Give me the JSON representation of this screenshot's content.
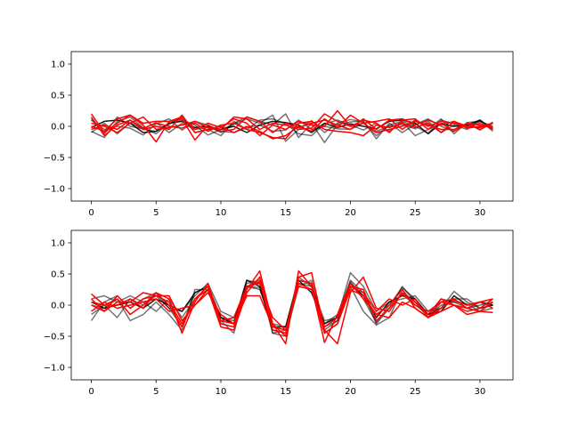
{
  "chart_data": [
    {
      "type": "line",
      "title": "",
      "xlabel": "",
      "ylabel": "",
      "xlim": [
        -1.55,
        32.55
      ],
      "ylim": [
        -1.2,
        1.2
      ],
      "xticks": [
        0,
        5,
        10,
        15,
        20,
        25,
        30
      ],
      "xtick_labels": [
        "0",
        "5",
        "10",
        "15",
        "20",
        "25",
        "30"
      ],
      "yticks": [
        -1.0,
        -0.5,
        0.0,
        0.5,
        1.0
      ],
      "ytick_labels": [
        "−1.0",
        "−0.5",
        "0.0",
        "0.5",
        "1.0"
      ],
      "grid": false,
      "x": [
        0,
        1,
        2,
        3,
        4,
        5,
        6,
        7,
        8,
        9,
        10,
        11,
        12,
        13,
        14,
        15,
        16,
        17,
        18,
        19,
        20,
        21,
        22,
        23,
        24,
        25,
        26,
        27,
        28,
        29,
        30,
        31
      ],
      "series": [
        {
          "color": "#000000",
          "opacity": 0.55,
          "values": [
            -0.08,
            -0.18,
            0.08,
            0.15,
            -0.02,
            -0.12,
            0.05,
            0.1,
            0.02,
            -0.14,
            -0.05,
            0.03,
            0.12,
            0.05,
            0.18,
            -0.24,
            -0.05,
            0.09,
            -0.1,
            0.05,
            0.11,
            0.07,
            -0.15,
            0.02,
            0.08,
            0.0,
            -0.11,
            0.1,
            0.04,
            0.0,
            0.08,
            -0.02
          ]
        },
        {
          "color": "#000000",
          "opacity": 0.55,
          "values": [
            0.1,
            -0.05,
            0.0,
            -0.03,
            -0.14,
            0.04,
            0.12,
            -0.06,
            0.08,
            0.02,
            -0.1,
            0.05,
            0.15,
            0.08,
            0.02,
            0.2,
            -0.18,
            0.05,
            -0.26,
            0.03,
            0.07,
            0.09,
            -0.2,
            0.05,
            -0.1,
            0.03,
            0.12,
            0.0,
            -0.08,
            0.05,
            -0.06,
            0.07
          ]
        },
        {
          "color": "#000000",
          "opacity": 0.55,
          "values": [
            -0.1,
            0.05,
            -0.12,
            0.06,
            -0.05,
            -0.08,
            0.03,
            0.15,
            -0.1,
            -0.05,
            -0.15,
            0.08,
            -0.05,
            0.1,
            0.12,
            0.04,
            -0.12,
            -0.15,
            0.04,
            0.1,
            0.02,
            -0.06,
            0.05,
            -0.08,
            0.07,
            -0.15,
            -0.05,
            0.12,
            -0.12,
            0.06,
            0.08,
            0.0
          ]
        },
        {
          "color": "#000000",
          "opacity": 0.55,
          "values": [
            0.12,
            -0.12,
            0.15,
            0.0,
            -0.04,
            0.06,
            -0.1,
            0.05,
            -0.05,
            -0.02,
            -0.08,
            -0.1,
            -0.02,
            0.02,
            -0.08,
            -0.06,
            0.1,
            -0.05,
            0.0,
            -0.04,
            -0.05,
            0.05,
            -0.08,
            0.0,
            0.03,
            -0.04,
            0.08,
            -0.1,
            0.02,
            -0.05,
            0.1,
            -0.08
          ]
        },
        {
          "color": "#000000",
          "opacity": 0.9,
          "values": [
            -0.02,
            0.08,
            0.1,
            0.05,
            -0.1,
            -0.08,
            0.05,
            0.08,
            -0.02,
            0.0,
            -0.05,
            0.0,
            -0.1,
            0.02,
            0.08,
            0.06,
            0.02,
            -0.1,
            0.05,
            -0.02,
            0.04,
            0.0,
            -0.04,
            0.08,
            0.1,
            0.05,
            -0.12,
            0.05,
            0.0,
            0.02,
            0.1,
            -0.05
          ]
        },
        {
          "color": "#ff0000",
          "opacity": 1,
          "values": [
            0.2,
            -0.1,
            0.05,
            0.18,
            0.02,
            -0.25,
            0.08,
            0.15,
            -0.05,
            0.05,
            -0.02,
            0.12,
            0.05,
            -0.15,
            0.02,
            -0.05,
            0.08,
            0.02,
            0.0,
            0.25,
            0.0,
            0.1,
            0.05,
            -0.1,
            0.1,
            0.12,
            -0.05,
            0.05,
            -0.08,
            0.05,
            -0.05,
            0.05
          ]
        },
        {
          "color": "#ff0000",
          "opacity": 1,
          "values": [
            0.0,
            -0.08,
            0.12,
            0.18,
            0.05,
            0.08,
            0.08,
            0.12,
            -0.22,
            0.02,
            -0.08,
            -0.05,
            0.15,
            0.08,
            -0.1,
            0.05,
            -0.02,
            0.05,
            0.1,
            0.02,
            -0.05,
            0.12,
            -0.05,
            0.1,
            0.12,
            0.02,
            0.1,
            0.02,
            0.08,
            0.0,
            -0.02,
            0.05
          ]
        },
        {
          "color": "#ff0000",
          "opacity": 1,
          "values": [
            0.15,
            -0.15,
            0.02,
            0.1,
            -0.05,
            0.0,
            -0.05,
            0.18,
            -0.1,
            -0.05,
            0.0,
            -0.1,
            0.0,
            -0.08,
            -0.2,
            -0.15,
            0.0,
            -0.08,
            0.12,
            -0.02,
            0.18,
            0.05,
            -0.1,
            -0.05,
            0.0,
            0.08,
            0.02,
            -0.05,
            -0.05,
            0.05,
            0.02,
            -0.02
          ]
        },
        {
          "color": "#ff0000",
          "opacity": 1,
          "values": [
            -0.05,
            0.02,
            -0.05,
            0.1,
            -0.03,
            0.05,
            0.0,
            -0.03,
            0.05,
            -0.08,
            0.02,
            0.05,
            -0.05,
            -0.1,
            -0.18,
            -0.2,
            0.05,
            0.08,
            -0.05,
            -0.08,
            -0.1,
            -0.15,
            0.02,
            -0.02,
            0.05,
            -0.02,
            0.05,
            -0.1,
            0.08,
            -0.03,
            0.0,
            0.05
          ]
        },
        {
          "color": "#ff0000",
          "opacity": 1,
          "values": [
            0.05,
            0.0,
            -0.1,
            0.05,
            0.15,
            -0.05,
            -0.02,
            0.02,
            0.08,
            -0.02,
            -0.05,
            0.15,
            0.12,
            -0.05,
            0.05,
            0.02,
            -0.05,
            -0.03,
            0.2,
            0.08,
            0.0,
            0.05,
            0.08,
            0.12,
            -0.05,
            0.1,
            0.0,
            0.08,
            0.05,
            -0.02,
            0.05,
            -0.05
          ]
        }
      ]
    },
    {
      "type": "line",
      "title": "",
      "xlabel": "",
      "ylabel": "",
      "xlim": [
        -1.55,
        32.55
      ],
      "ylim": [
        -1.2,
        1.2
      ],
      "xticks": [
        0,
        5,
        10,
        15,
        20,
        25,
        30
      ],
      "xtick_labels": [
        "0",
        "5",
        "10",
        "15",
        "20",
        "25",
        "30"
      ],
      "yticks": [
        -1.0,
        -0.5,
        0.0,
        0.5,
        1.0
      ],
      "ytick_labels": [
        "−1.0",
        "−0.5",
        "0.0",
        "0.5",
        "1.0"
      ],
      "grid": false,
      "x": [
        0,
        1,
        2,
        3,
        4,
        5,
        6,
        7,
        8,
        9,
        10,
        11,
        12,
        13,
        14,
        15,
        16,
        17,
        18,
        19,
        20,
        21,
        22,
        23,
        24,
        25,
        26,
        27,
        28,
        29,
        30,
        31
      ],
      "series": [
        {
          "color": "#000000",
          "opacity": 0.55,
          "values": [
            -0.25,
            0.05,
            0.15,
            -0.05,
            0.1,
            0.2,
            -0.05,
            -0.35,
            0.2,
            0.3,
            -0.2,
            -0.3,
            0.4,
            0.35,
            -0.45,
            -0.4,
            0.4,
            0.35,
            -0.4,
            -0.25,
            0.4,
            0.2,
            -0.3,
            -0.05,
            0.3,
            0.05,
            -0.2,
            0.1,
            0.05,
            -0.05,
            0.0,
            0.05
          ]
        },
        {
          "color": "#000000",
          "opacity": 0.55,
          "values": [
            0.1,
            0.15,
            0.05,
            0.15,
            0.05,
            -0.1,
            0.1,
            -0.2,
            0.1,
            0.25,
            -0.2,
            -0.25,
            0.3,
            0.25,
            -0.3,
            -0.35,
            0.45,
            0.3,
            -0.25,
            -0.2,
            0.52,
            0.3,
            -0.1,
            0.05,
            0.1,
            0.15,
            -0.1,
            -0.05,
            0.22,
            0.05,
            -0.05,
            0.0
          ]
        },
        {
          "color": "#000000",
          "opacity": 0.55,
          "values": [
            0.0,
            -0.05,
            0.1,
            -0.25,
            -0.15,
            0.05,
            -0.15,
            -0.4,
            0.25,
            0.25,
            -0.25,
            -0.45,
            0.35,
            0.4,
            -0.45,
            -0.5,
            0.3,
            0.4,
            -0.35,
            -0.25,
            0.3,
            -0.1,
            -0.32,
            -0.2,
            0.25,
            0.0,
            -0.15,
            -0.05,
            0.1,
            0.1,
            -0.05,
            0.0
          ]
        },
        {
          "color": "#000000",
          "opacity": 0.55,
          "values": [
            -0.15,
            0.0,
            -0.2,
            0.1,
            0.0,
            0.15,
            -0.05,
            -0.1,
            0.15,
            0.35,
            -0.1,
            -0.2,
            0.3,
            0.28,
            -0.4,
            -0.45,
            0.35,
            0.3,
            -0.3,
            -0.15,
            0.38,
            0.1,
            -0.28,
            0.0,
            0.28,
            0.1,
            -0.2,
            0.0,
            0.05,
            0.02,
            -0.1,
            -0.05
          ]
        },
        {
          "color": "#000000",
          "opacity": 0.9,
          "values": [
            0.05,
            -0.05,
            0.0,
            0.05,
            -0.05,
            0.1,
            0.0,
            -0.1,
            0.2,
            0.3,
            -0.2,
            -0.3,
            0.4,
            0.3,
            -0.35,
            -0.35,
            0.4,
            0.2,
            -0.3,
            -0.2,
            0.35,
            0.15,
            -0.2,
            0.05,
            0.15,
            0.1,
            -0.15,
            -0.1,
            0.15,
            0.0,
            0.05,
            0.0
          ]
        },
        {
          "color": "#ff0000",
          "opacity": 1,
          "values": [
            0.18,
            0.0,
            0.0,
            0.1,
            -0.05,
            0.2,
            0.1,
            -0.45,
            0.05,
            0.35,
            -0.3,
            -0.35,
            0.25,
            0.55,
            -0.3,
            -0.62,
            0.55,
            0.3,
            -0.6,
            -0.15,
            0.35,
            0.1,
            -0.15,
            0.0,
            0.25,
            -0.05,
            -0.2,
            0.05,
            0.0,
            -0.1,
            -0.05,
            0.1
          ]
        },
        {
          "color": "#ff0000",
          "opacity": 1,
          "values": [
            0.1,
            -0.1,
            0.15,
            -0.05,
            0.1,
            0.15,
            0.15,
            -0.25,
            0.0,
            0.25,
            -0.35,
            -0.4,
            0.2,
            0.45,
            -0.3,
            -0.5,
            0.45,
            0.52,
            -0.4,
            -0.62,
            0.2,
            0.45,
            -0.05,
            -0.1,
            0.2,
            0.05,
            -0.15,
            0.1,
            0.0,
            -0.05,
            -0.1,
            0.05
          ]
        },
        {
          "color": "#ff0000",
          "opacity": 1,
          "values": [
            0.0,
            -0.1,
            0.05,
            0.05,
            0.2,
            0.15,
            0.05,
            -0.3,
            0.1,
            0.3,
            -0.25,
            -0.2,
            0.3,
            0.38,
            -0.4,
            -0.45,
            0.35,
            0.25,
            -0.35,
            -0.2,
            0.3,
            0.25,
            -0.25,
            -0.05,
            0.18,
            0.0,
            -0.1,
            0.05,
            0.1,
            -0.05,
            0.05,
            -0.05
          ]
        },
        {
          "color": "#ff0000",
          "opacity": 1,
          "values": [
            -0.1,
            0.05,
            -0.05,
            0.0,
            0.05,
            0.1,
            -0.1,
            -0.05,
            0.0,
            0.2,
            -0.15,
            -0.3,
            0.15,
            0.15,
            -0.35,
            -0.4,
            0.3,
            0.25,
            -0.45,
            -0.3,
            0.25,
            0.15,
            -0.15,
            -0.2,
            0.05,
            -0.05,
            -0.2,
            -0.1,
            0.0,
            -0.15,
            -0.1,
            -0.12
          ]
        },
        {
          "color": "#ff0000",
          "opacity": 1,
          "values": [
            0.05,
            0.0,
            0.1,
            -0.15,
            0.0,
            0.2,
            0.0,
            -0.35,
            0.1,
            0.25,
            -0.25,
            -0.3,
            0.3,
            0.35,
            -0.2,
            -0.4,
            0.4,
            0.35,
            -0.45,
            -0.3,
            0.3,
            0.2,
            -0.1,
            0.1,
            0.0,
            0.1,
            -0.2,
            -0.05,
            0.08,
            0.0,
            0.05,
            0.1
          ]
        }
      ]
    }
  ]
}
